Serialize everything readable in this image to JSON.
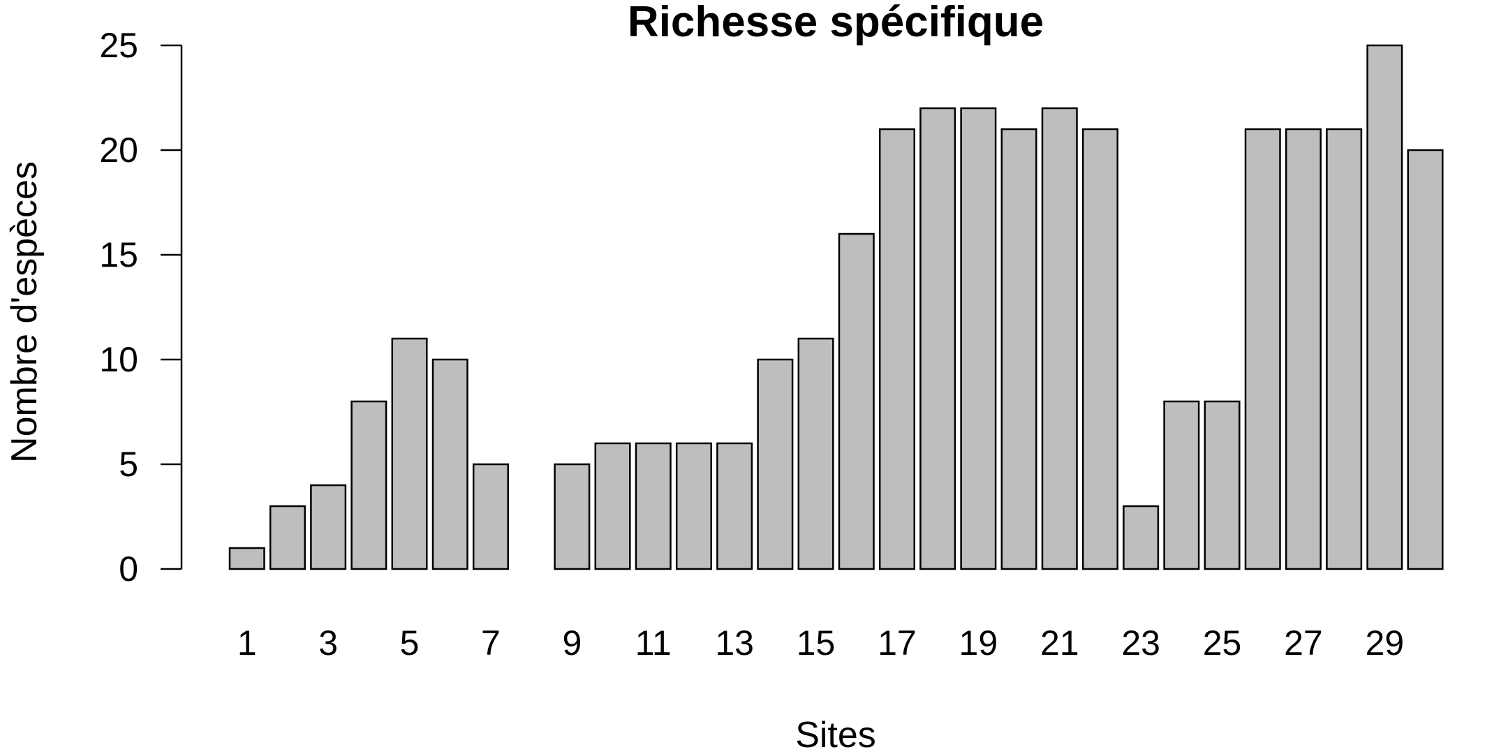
{
  "chart_data": {
    "type": "bar",
    "title": "Richesse spécifique",
    "xlabel": "Sites",
    "ylabel": "Nombre d'espèces",
    "categories": [
      "1",
      "2",
      "3",
      "4",
      "5",
      "6",
      "7",
      "8",
      "9",
      "10",
      "11",
      "12",
      "13",
      "14",
      "15",
      "16",
      "17",
      "18",
      "19",
      "20",
      "21",
      "22",
      "23",
      "24",
      "25",
      "26",
      "27",
      "28",
      "29",
      "30"
    ],
    "x_tick_labels": [
      "1",
      "3",
      "5",
      "7",
      "9",
      "11",
      "13",
      "15",
      "17",
      "19",
      "21",
      "23",
      "25",
      "27",
      "29"
    ],
    "values": [
      1,
      3,
      4,
      8,
      11,
      10,
      5,
      0,
      5,
      6,
      6,
      6,
      6,
      10,
      11,
      16,
      21,
      22,
      22,
      21,
      22,
      21,
      3,
      8,
      8,
      21,
      21,
      21,
      25,
      20
    ],
    "ylim": [
      0,
      25
    ],
    "y_ticks": [
      0,
      5,
      10,
      15,
      20,
      25
    ],
    "bar_color": "#bebebe",
    "border_color": "#000000",
    "grid": false,
    "legend": false
  }
}
